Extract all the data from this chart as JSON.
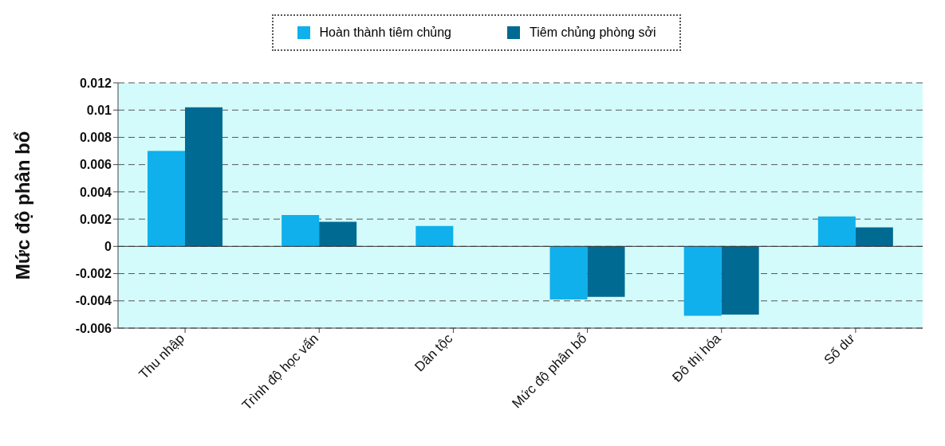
{
  "chart_data": {
    "type": "bar",
    "ylabel": "Mức độ phân bổ",
    "categories": [
      "Thu nhập",
      "Trình độ học vấn",
      "Dân tộc",
      "Mức độ phân bổ",
      "Đô thị hóa",
      "Số dư"
    ],
    "series": [
      {
        "name": "Hoàn thành tiêm chủng",
        "color": "#0fb0ec",
        "values": [
          0.007,
          0.0023,
          0.0015,
          -0.0039,
          -0.0051,
          0.0022
        ]
      },
      {
        "name": "Tiêm chủng phòng sởi",
        "color": "#006a93",
        "values": [
          0.0102,
          0.0018,
          0,
          -0.0037,
          -0.005,
          0.0014
        ]
      }
    ],
    "ylim": [
      -0.006,
      0.012
    ],
    "yticks": [
      -0.006,
      -0.004,
      -0.002,
      0,
      0.002,
      0.004,
      0.006,
      0.008,
      0.01,
      0.012
    ],
    "grid": "y",
    "legend": "top"
  }
}
